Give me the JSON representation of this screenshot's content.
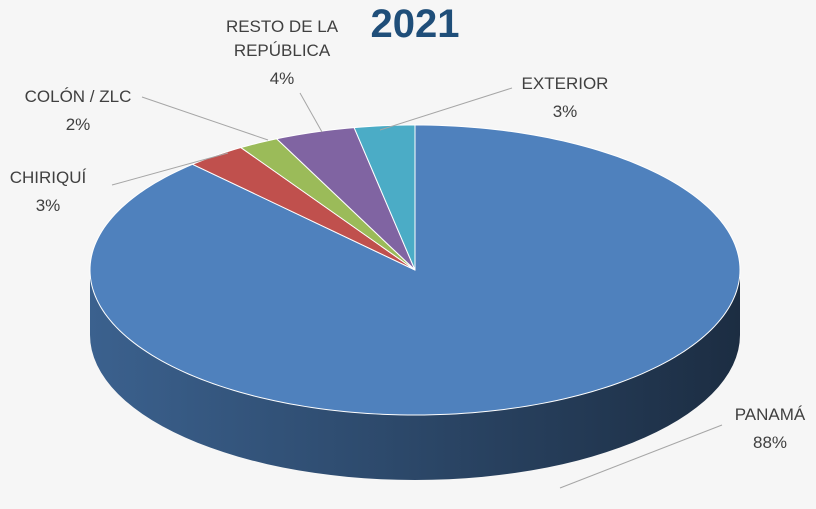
{
  "chart_data": {
    "type": "pie3d",
    "title": "2021",
    "categories": [
      "PANAMÁ",
      "CHIRIQUÍ",
      "COLÓN / ZLC",
      "RESTO DE LA REPÚBLICA",
      "EXTERIOR"
    ],
    "values": [
      88,
      3,
      2,
      4,
      3
    ],
    "value_labels": [
      "88%",
      "3%",
      "2%",
      "4%",
      "3%"
    ],
    "colors": [
      "#4f81bd",
      "#c0504d",
      "#9bbb59",
      "#8064a2",
      "#4bacc6"
    ]
  }
}
